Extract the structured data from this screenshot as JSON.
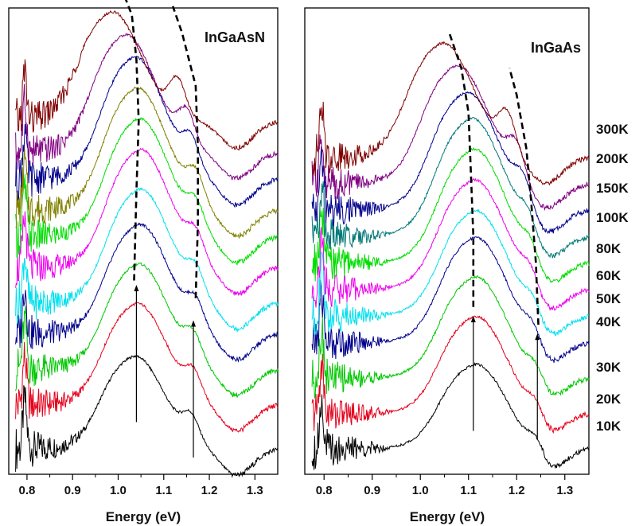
{
  "chart_data": [
    {
      "type": "line",
      "title": "InGaAsN",
      "xlabel": "Energy (eV)",
      "ylabel": "",
      "xlim": [
        0.76,
        1.35
      ],
      "x_ticks": [
        "0.8",
        "0.9",
        "1.0",
        "1.1",
        "1.2",
        "1.3"
      ],
      "y_ticks": [],
      "grid": false,
      "series": [
        {
          "color": "#000000",
          "baseline": 0.04,
          "ampA": 0.22,
          "ampB": 0.05,
          "peakA": 1.03,
          "peakB": 1.16
        },
        {
          "color": "#e4001b",
          "baseline": 0.14,
          "ampA": 0.24,
          "ampB": 0.05,
          "peakA": 1.035,
          "peakB": 1.165
        },
        {
          "color": "#00c800",
          "baseline": 0.22,
          "ampA": 0.25,
          "ampB": 0.05,
          "peakA": 1.038,
          "peakB": 1.165
        },
        {
          "color": "#00008c",
          "baseline": 0.3,
          "ampA": 0.26,
          "ampB": 0.05,
          "peakA": 1.04,
          "peakB": 1.17
        },
        {
          "color": "#00e0ee",
          "baseline": 0.37,
          "ampA": 0.27,
          "ampB": 0.05,
          "peakA": 1.042,
          "peakB": 1.17
        },
        {
          "color": "#ee00ee",
          "baseline": 0.45,
          "ampA": 0.28,
          "ampB": 0.05,
          "peakA": 1.042,
          "peakB": 1.17
        },
        {
          "color": "#00dd00",
          "baseline": 0.52,
          "ampA": 0.28,
          "ampB": 0.05,
          "peakA": 1.04,
          "peakB": 1.17
        },
        {
          "color": "#808000",
          "baseline": 0.58,
          "ampA": 0.29,
          "ampB": 0.06,
          "peakA": 1.035,
          "peakB": 1.17
        },
        {
          "color": "#00008c",
          "baseline": 0.65,
          "ampA": 0.29,
          "ampB": 0.06,
          "peakA": 1.03,
          "peakB": 1.16
        },
        {
          "color": "#800080",
          "baseline": 0.71,
          "ampA": 0.28,
          "ampB": 0.07,
          "peakA": 1.01,
          "peakB": 1.15
        },
        {
          "color": "#800000",
          "baseline": 0.78,
          "ampA": 0.26,
          "ampB": 0.08,
          "peakA": 0.98,
          "peakB": 1.13
        }
      ],
      "dashed_curves": [
        [
          [
            1.035,
            0.42
          ],
          [
            1.04,
            0.62
          ],
          [
            1.045,
            0.78
          ],
          [
            1.04,
            0.92
          ],
          [
            1.03,
            1.02
          ],
          [
            1.0,
            1.1
          ]
        ],
        [
          [
            1.17,
            0.38
          ],
          [
            1.175,
            0.55
          ],
          [
            1.175,
            0.72
          ],
          [
            1.17,
            0.86
          ],
          [
            1.14,
            0.98
          ],
          [
            1.12,
            1.04
          ]
        ]
      ],
      "arrows": [
        {
          "x": 1.04,
          "y_from": 0.1,
          "y_to": 0.41
        },
        {
          "x": 1.165,
          "y_from": 0.02,
          "y_to": 0.33
        }
      ],
      "temperatures": []
    },
    {
      "type": "line",
      "title": "InGaAs",
      "xlabel": "Energy (eV)",
      "ylabel": "",
      "xlim": [
        0.76,
        1.35
      ],
      "x_ticks": [
        "0.8",
        "0.9",
        "1.0",
        "1.1",
        "1.2",
        "1.3"
      ],
      "y_ticks": [],
      "grid": false,
      "series": [
        {
          "color": "#000000",
          "baseline": 0.04,
          "ampA": 0.2,
          "ampB": 0.05,
          "peakA": 1.108,
          "peakB": 1.24
        },
        {
          "color": "#e4001b",
          "baseline": 0.12,
          "ampA": 0.23,
          "ampB": 0.05,
          "peakA": 1.108,
          "peakB": 1.24
        },
        {
          "color": "#00c800",
          "baseline": 0.2,
          "ampA": 0.24,
          "ampB": 0.05,
          "peakA": 1.108,
          "peakB": 1.24
        },
        {
          "color": "#00008c",
          "baseline": 0.28,
          "ampA": 0.25,
          "ampB": 0.05,
          "peakA": 1.108,
          "peakB": 1.235
        },
        {
          "color": "#00e0ee",
          "baseline": 0.34,
          "ampA": 0.25,
          "ampB": 0.05,
          "peakA": 1.108,
          "peakB": 1.235
        },
        {
          "color": "#ee00ee",
          "baseline": 0.4,
          "ampA": 0.26,
          "ampB": 0.05,
          "peakA": 1.105,
          "peakB": 1.23
        },
        {
          "color": "#00dd00",
          "baseline": 0.46,
          "ampA": 0.27,
          "ampB": 0.05,
          "peakA": 1.105,
          "peakB": 1.23
        },
        {
          "color": "#007878",
          "baseline": 0.52,
          "ampA": 0.28,
          "ampB": 0.05,
          "peakA": 1.1,
          "peakB": 1.225
        },
        {
          "color": "#00008c",
          "baseline": 0.58,
          "ampA": 0.28,
          "ampB": 0.06,
          "peakA": 1.09,
          "peakB": 1.215
        },
        {
          "color": "#800080",
          "baseline": 0.64,
          "ampA": 0.28,
          "ampB": 0.07,
          "peakA": 1.07,
          "peakB": 1.2
        },
        {
          "color": "#800000",
          "baseline": 0.7,
          "ampA": 0.27,
          "ampB": 0.08,
          "peakA": 1.04,
          "peakB": 1.18
        }
      ],
      "dashed_curves": [
        [
          [
            1.11,
            0.36
          ],
          [
            1.11,
            0.52
          ],
          [
            1.105,
            0.66
          ],
          [
            1.1,
            0.8
          ],
          [
            1.085,
            0.9
          ],
          [
            1.06,
            0.98
          ]
        ],
        [
          [
            1.245,
            0.32
          ],
          [
            1.24,
            0.46
          ],
          [
            1.23,
            0.6
          ],
          [
            1.22,
            0.72
          ],
          [
            1.2,
            0.84
          ],
          [
            1.185,
            0.9
          ]
        ]
      ],
      "arrows": [
        {
          "x": 1.11,
          "y_from": 0.08,
          "y_to": 0.34
        },
        {
          "x": 1.243,
          "y_from": 0.06,
          "y_to": 0.3
        }
      ],
      "temperatures": [
        "10K",
        "20K",
        "30K",
        "40K",
        "50K",
        "60K",
        "80K",
        "100K",
        "150K",
        "200K",
        "300K"
      ]
    }
  ]
}
